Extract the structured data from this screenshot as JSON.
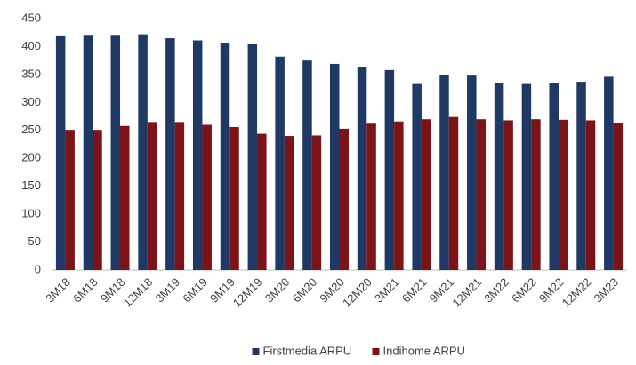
{
  "chart_data": {
    "type": "bar",
    "categories": [
      "3M18",
      "6M18",
      "9M18",
      "12M18",
      "3M19",
      "6M19",
      "9M19",
      "12M19",
      "3M20",
      "6M20",
      "9M20",
      "12M20",
      "3M21",
      "6M21",
      "9M21",
      "12M21",
      "3M22",
      "6M22",
      "9M22",
      "12M22",
      "3M23"
    ],
    "series": [
      {
        "name": "Firstmedia ARPU",
        "color": "#1f3864",
        "values": [
          420,
          421,
          421,
          422,
          415,
          411,
          407,
          404,
          382,
          375,
          369,
          364,
          358,
          333,
          349,
          348,
          335,
          333,
          334,
          337,
          346
        ]
      },
      {
        "name": "Indihome ARPU",
        "color": "#7b1416",
        "values": [
          251,
          251,
          258,
          265,
          265,
          260,
          256,
          244,
          240,
          241,
          253,
          262,
          266,
          270,
          274,
          270,
          268,
          270,
          269,
          268,
          264
        ]
      }
    ],
    "ylim": [
      0,
      450
    ],
    "yticks": [
      0,
      50,
      100,
      150,
      200,
      250,
      300,
      350,
      400,
      450
    ],
    "grid": false,
    "legend": "bottom"
  }
}
